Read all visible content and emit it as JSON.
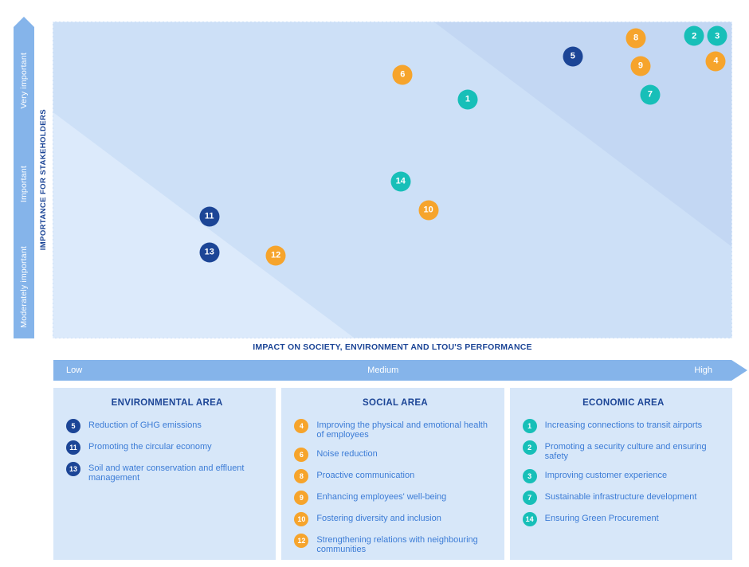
{
  "colors": {
    "navy": "#1c4596",
    "orange": "#f6a42c",
    "teal": "#17bfb8",
    "bar_blue": "#85b4ea",
    "plot_mid": "#cde0f7",
    "plot_dark": "#c3d7f3",
    "plot_light": "#dceafb",
    "box_bg": "#d7e7f9",
    "item_text": "#3c7cd6"
  },
  "matrix": {
    "y_axis": {
      "title": "IMPORTANCE FOR STAKEHOLDERS",
      "levels": [
        "Moderately important",
        "Important",
        "Very important"
      ]
    },
    "x_axis": {
      "title": "IMPACT ON SOCIETY, ENVIRONMENT AND LTOU'S PERFORMANCE",
      "levels": [
        "Low",
        "Medium",
        "High"
      ]
    }
  },
  "chart_data": {
    "type": "scatter",
    "xlabel": "IMPACT ON SOCIETY, ENVIRONMENT AND LTOU'S PERFORMANCE",
    "ylabel": "IMPORTANCE FOR STAKEHOLDERS",
    "x_scale": [
      "Low",
      "Medium",
      "High"
    ],
    "y_scale": [
      "Moderately important",
      "Important",
      "Very important"
    ],
    "note_x_pct_is_impact": "x_pct: 0=Low 100=High; y_pct measured from top, 0=Very important 100=Moderately important",
    "points": [
      {
        "id": 1,
        "area": "economic",
        "label": "Increasing connections to transit airports",
        "x_pct": 61.1,
        "y_pct": 24.4
      },
      {
        "id": 2,
        "area": "economic",
        "label": "Promoting a security culture and ensuring safety",
        "x_pct": 94.5,
        "y_pct": 4.3
      },
      {
        "id": 3,
        "area": "economic",
        "label": "Improving customer experience",
        "x_pct": 97.9,
        "y_pct": 4.3
      },
      {
        "id": 4,
        "area": "social",
        "label": "Improving the physical and emotional health of employees",
        "x_pct": 97.7,
        "y_pct": 12.3
      },
      {
        "id": 5,
        "area": "environmental",
        "label": "Reduction of GHG emissions",
        "x_pct": 76.6,
        "y_pct": 10.8
      },
      {
        "id": 6,
        "area": "social",
        "label": "Noise reduction",
        "x_pct": 51.5,
        "y_pct": 16.6
      },
      {
        "id": 7,
        "area": "economic",
        "label": "Sustainable infrastructure development",
        "x_pct": 88.0,
        "y_pct": 22.9
      },
      {
        "id": 8,
        "area": "social",
        "label": "Proactive communication",
        "x_pct": 85.9,
        "y_pct": 5.0
      },
      {
        "id": 9,
        "area": "social",
        "label": "Enhancing employees' well-being",
        "x_pct": 86.6,
        "y_pct": 13.8
      },
      {
        "id": 10,
        "area": "social",
        "label": "Fostering diversity and inclusion",
        "x_pct": 55.3,
        "y_pct": 59.5
      },
      {
        "id": 11,
        "area": "environmental",
        "label": "Promoting the circular economy",
        "x_pct": 23.0,
        "y_pct": 61.6
      },
      {
        "id": 12,
        "area": "social",
        "label": "Strengthening relations with neighbouring communities",
        "x_pct": 32.8,
        "y_pct": 73.9
      },
      {
        "id": 13,
        "area": "environmental",
        "label": "Soil and water conservation and effluent management",
        "x_pct": 23.0,
        "y_pct": 72.9
      },
      {
        "id": 14,
        "area": "economic",
        "label": "Ensuring Green Procurement",
        "x_pct": 51.2,
        "y_pct": 50.5
      }
    ]
  },
  "legend": {
    "groups": [
      {
        "id": "environmental",
        "title": "ENVIRONMENTAL AREA",
        "items": [
          {
            "num": 5,
            "label": "Reduction of GHG emissions"
          },
          {
            "num": 11,
            "label": "Promoting the circular economy"
          },
          {
            "num": 13,
            "label": "Soil and water conservation and effluent management"
          }
        ]
      },
      {
        "id": "social",
        "title": "SOCIAL AREA",
        "items": [
          {
            "num": 4,
            "label": "Improving the physical and emotional health of employees"
          },
          {
            "num": 6,
            "label": "Noise reduction"
          },
          {
            "num": 8,
            "label": "Proactive communication"
          },
          {
            "num": 9,
            "label": "Enhancing employees' well-being"
          },
          {
            "num": 10,
            "label": "Fostering diversity and inclusion"
          },
          {
            "num": 12,
            "label": "Strengthening relations with neighbouring communities"
          }
        ]
      },
      {
        "id": "economic",
        "title": "ECONOMIC AREA",
        "items": [
          {
            "num": 1,
            "label": "Increasing connections to transit airports"
          },
          {
            "num": 2,
            "label": "Promoting a security culture and ensuring safety"
          },
          {
            "num": 3,
            "label": "Improving customer experience"
          },
          {
            "num": 7,
            "label": "Sustainable infrastructure development"
          },
          {
            "num": 14,
            "label": "Ensuring Green Procurement"
          }
        ]
      }
    ]
  }
}
